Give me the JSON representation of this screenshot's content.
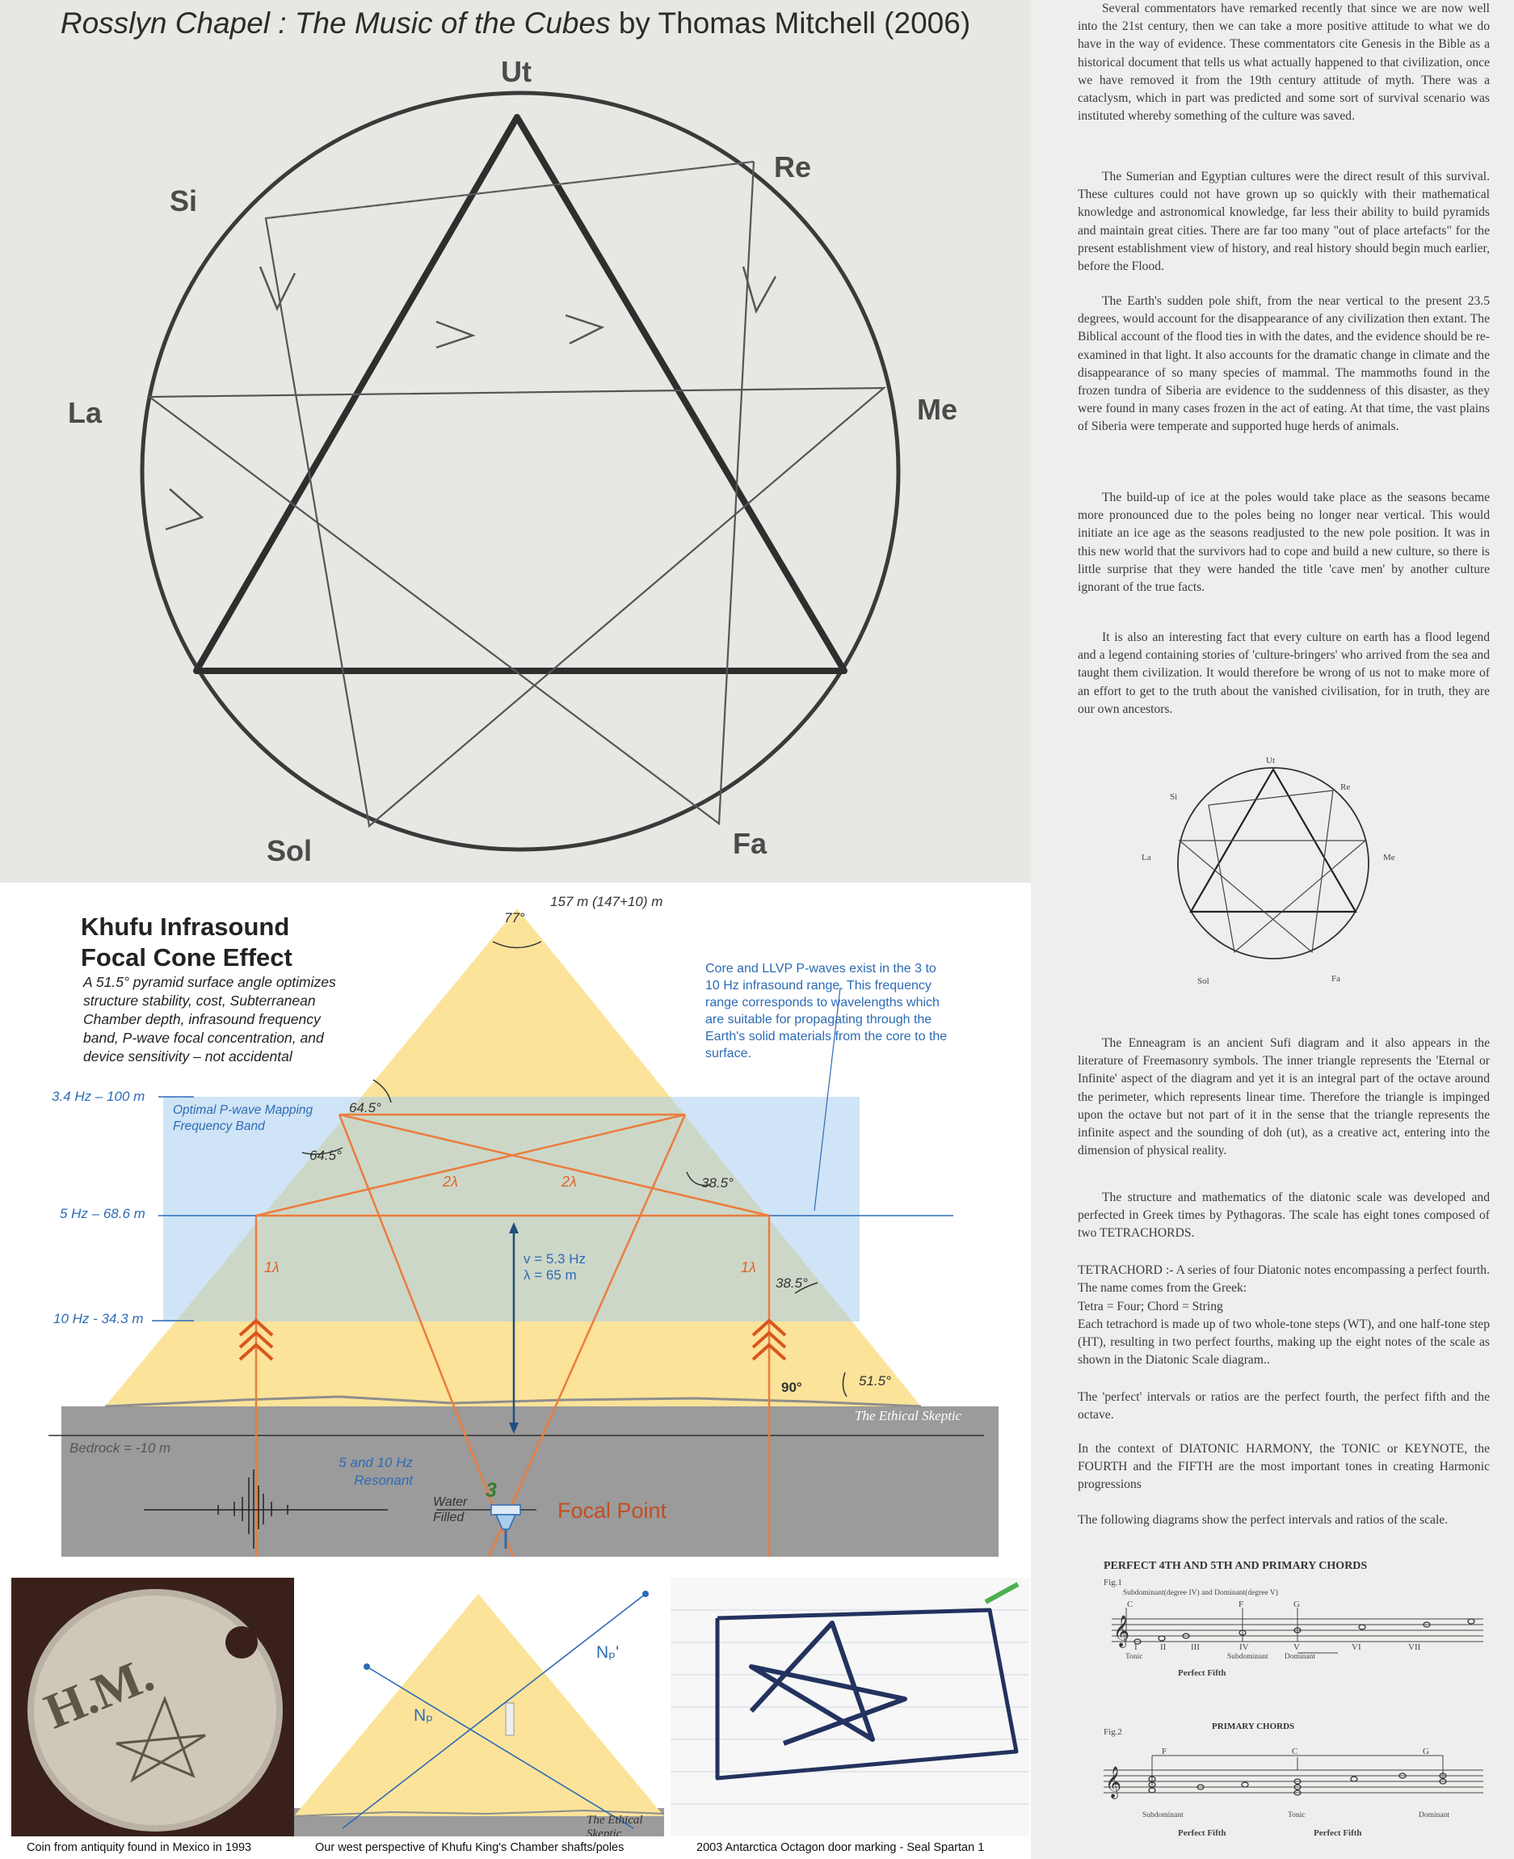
{
  "top_panel": {
    "title_italic": "Rosslyn Chapel : The Music of the Cubes",
    "title_by": " by ",
    "title_author": "Thomas Mitchell",
    "title_year": " (2006)",
    "notes": [
      "Ut",
      "Re",
      "Me",
      "Fa",
      "Sol",
      "La",
      "Si"
    ]
  },
  "book_page": {
    "paragraphs": [
      "Several commentators have remarked recently that since we are now well into the 21st century, then we can take a more positive attitude to what we do have in the way of evidence. These commentators cite Genesis in the Bible as a historical document that tells us what actually happened to that civilization, once we have removed it from the 19th century attitude of myth. There was a cataclysm, which in part was predicted and some sort of survival scenario was instituted whereby something of the culture was saved.",
      "The Sumerian and Egyptian cultures were the direct result of this survival. These cultures could not have grown up so quickly with their mathematical knowledge and astronomical knowledge, far less their ability to build pyramids and maintain great cities. There are far too many \"out of place artefacts\" for the present establishment view of history, and real history should begin much earlier, before the Flood.",
      "The Earth's sudden pole shift, from the near vertical to the present 23.5 degrees, would account for the disappearance of any civilization then extant. The Biblical account of the flood ties in with the dates, and the evidence should be re-examined in that light. It also accounts for the dramatic change in climate and the disappearance of so many species of mammal. The mammoths found in the frozen tundra of Siberia are evidence to the suddenness of this disaster, as they were found in many cases frozen in the act of eating. At that time, the vast plains of Siberia were temperate and supported huge herds of animals.",
      "The build-up of ice at the poles would take place as the seasons became more pronounced due to the poles being no longer near vertical. This would initiate an ice age as the seasons readjusted to the new pole position. It was in this new world that the survivors had to cope and build a new culture, so there is little surprise that they were handed the title 'cave men' by another culture ignorant of the true facts.",
      "It is also an interesting fact that every culture on earth has a flood legend and a legend containing stories of 'culture-bringers' who arrived from the sea and taught them civilization. It would therefore be wrong of us not to make more of an effort to get to the truth about the vanished civilisation, for in truth, they are our own ancestors.",
      "The Enneagram is an ancient Sufi diagram and it also appears in the literature of Freemasonry symbols. The inner triangle represents the 'Eternal or Infinite' aspect of the diagram and yet it is an integral part of the octave around the perimeter, which represents linear time. Therefore the triangle is impinged upon the octave but not part of it in the sense that the triangle represents the infinite aspect and the sounding of doh (ut), as a creative act, entering into the dimension of physical reality.",
      "The structure and mathematics of the diatonic scale was developed and perfected in Greek times by Pythagoras. The scale has eight tones composed of two TETRACHORDS.",
      "TETRACHORD :- A series of four Diatonic notes encompassing a perfect fourth. The name comes from the Greek:",
      "Tetra = Four; Chord = String",
      "Each tetrachord is made up of two whole-tone steps (WT), and one half-tone step (HT), resulting in two perfect fourths, making up the eight notes of the scale as shown in the Diatonic Scale diagram..",
      "The 'perfect' intervals or ratios are the perfect fourth, the perfect fifth and the octave.",
      "In the context of DIATONIC HARMONY, the TONIC or KEYNOTE, the FOURTH and the FIFTH are the most important tones in creating Harmonic progressions",
      "The following diagrams show the perfect intervals and ratios of the scale."
    ],
    "small_notes": [
      "Ut",
      "Re",
      "Me",
      "Fa",
      "Sol",
      "La",
      "Si"
    ],
    "fig_heading": "PERFECT 4TH AND 5TH AND PRIMARY CHORDS",
    "fig1": {
      "label": "Fig.1",
      "subtitle": "Subdominant(degree IV) and Dominant(degree V)",
      "note_c": "C",
      "note_f": "F",
      "note_g": "G",
      "degrees": [
        "I",
        "II",
        "III",
        "IV",
        "V",
        "VI",
        "VII"
      ],
      "tonic": "Tonic",
      "subdominant": "Subdominant",
      "dominant": "Dominant",
      "perfect_fifth": "Perfect Fifth"
    },
    "fig2": {
      "label": "Fig.2",
      "title": "PRIMARY CHORDS",
      "note_f": "F",
      "note_c": "C",
      "note_g": "G",
      "subdominant": "Subdominant",
      "tonic": "Tonic",
      "dominant": "Dominant",
      "perfect_fifth_1": "Perfect Fifth",
      "perfect_fifth_2": "Perfect Fifth"
    }
  },
  "khufu_panel": {
    "title_line1": "Khufu Infrasound",
    "title_line2": "Focal Cone Effect",
    "description": "A 51.5° pyramid surface angle optimizes structure stability, cost, Subterranean Chamber depth, infrasound frequency band, P-wave focal concentration, and device sensitivity – not accidental",
    "core_note": "Core and LLVP P-waves exist in the 3 to 10 Hz infrasound range. This frequency range corresponds to wavelengths which are suitable for propagating through the Earth's solid materials from the core to the surface.",
    "apex_height": "157 m (147+10) m",
    "apex_angle": "77°",
    "band_label": "Optimal P-wave Mapping Frequency Band",
    "freq_levels": [
      "3.4 Hz – 100 m",
      "5 Hz – 68.6 m",
      "10 Hz - 34.3 m"
    ],
    "angle_labels": [
      "64.5°",
      "64.5°",
      "38.5°",
      "38.5°",
      "51.5°",
      "90°"
    ],
    "wavelength_labels": [
      "2λ",
      "2λ",
      "1λ",
      "1λ"
    ],
    "velocity_line1": "v = 5.3 Hz",
    "velocity_line2": "λ = 65 m",
    "bedrock": "Bedrock = -10 m",
    "resonant_line1": "5 and 10 Hz",
    "resonant_line2": "Resonant",
    "chamber_number": "3",
    "water_line1": "Water",
    "water_line2": "Filled",
    "focal_point": "Focal Point",
    "watermark": "The Ethical Skeptic",
    "colors": {
      "pyramid": "#fbe39a",
      "band": "#a8cdee",
      "ground": "#9b9b9b",
      "ray": "#ea7d3d"
    }
  },
  "bottom_photos": {
    "coin_caption": "Coin from antiquity found in Mexico in 1993",
    "coin_inscription": "H.M.",
    "shafts_caption": "Our west perspective of Khufu King's Chamber shafts/poles",
    "np_label": "Nₚ",
    "np_prime_label": "Nₚ'",
    "shafts_watermark": "The Ethical Skeptic",
    "door_caption": "2003 Antarctica Octagon door marking - Seal Spartan 1"
  }
}
